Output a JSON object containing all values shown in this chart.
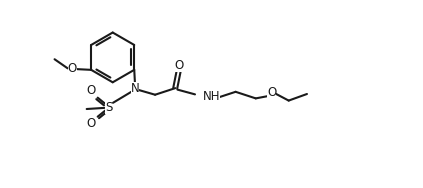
{
  "bg_color": "#ffffff",
  "line_color": "#1a1a1a",
  "line_width": 1.5,
  "font_size": 8.5,
  "figsize": [
    4.23,
    1.88
  ],
  "dpi": 100,
  "xlim": [
    -0.5,
    10.5
  ],
  "ylim": [
    -0.3,
    4.8
  ]
}
